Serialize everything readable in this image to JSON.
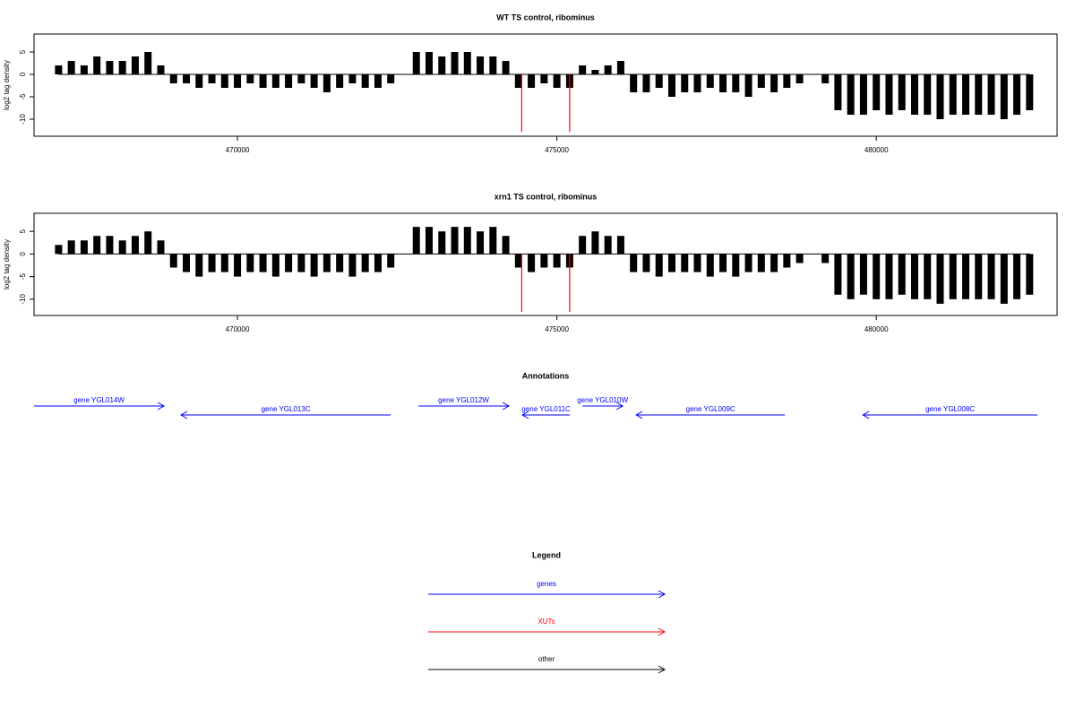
{
  "chart_data": [
    {
      "type": "spike",
      "title": "WT TS control, ribominus",
      "ylabel": "log2 tag density",
      "color": "#000000",
      "x": [
        467200,
        467400,
        467600,
        467800,
        468000,
        468200,
        468400,
        468600,
        468800,
        469000,
        469200,
        469400,
        469600,
        469800,
        470000,
        470200,
        470400,
        470600,
        470800,
        471000,
        471200,
        471400,
        471600,
        471800,
        472000,
        472200,
        472400,
        472600,
        472800,
        473000,
        473200,
        473400,
        473600,
        473800,
        474000,
        474200,
        474400,
        474600,
        474800,
        475000,
        475200,
        475400,
        475600,
        475800,
        476000,
        476200,
        476400,
        476600,
        476800,
        477000,
        477200,
        477400,
        477600,
        477800,
        478000,
        478200,
        478400,
        478600,
        478800,
        479000,
        479200,
        479400,
        479600,
        479800,
        480000,
        480200,
        480400,
        480600,
        480800,
        481000,
        481200,
        481400,
        481600,
        481800,
        482000,
        482200,
        482400
      ],
      "values": [
        2,
        3,
        2,
        4,
        3,
        3,
        4,
        5,
        2,
        -2,
        -2,
        -3,
        -2,
        -3,
        -3,
        -2,
        -3,
        -3,
        -3,
        -2,
        -3,
        -4,
        -3,
        -2,
        -3,
        -3,
        -2,
        0,
        5,
        5,
        4,
        5,
        5,
        4,
        4,
        3,
        -3,
        -3,
        -2,
        -3,
        -3,
        2,
        1,
        2,
        3,
        -4,
        -4,
        -3,
        -5,
        -4,
        -4,
        -3,
        -4,
        -4,
        -5,
        -3,
        -4,
        -3,
        -2,
        0,
        -2,
        -8,
        -9,
        -9,
        -8,
        -9,
        -8,
        -9,
        -9,
        -10,
        -9,
        -9,
        -9,
        -9,
        -10,
        -9,
        -8
      ],
      "highlight": {
        "color": "#ff0000",
        "x": [
          474450,
          475200
        ],
        "values": [
          -12.8,
          -12.8
        ]
      },
      "xlim": [
        466816,
        482830
      ],
      "ylim": [
        -13.8,
        9
      ],
      "xticks": [
        470000,
        475000,
        480000
      ],
      "yticks": [
        -10,
        -5,
        0,
        5
      ]
    },
    {
      "type": "spike",
      "title": "xrn1 TS control, ribominus",
      "ylabel": "log2 tag density",
      "color": "#000000",
      "x": [
        467200,
        467400,
        467600,
        467800,
        468000,
        468200,
        468400,
        468600,
        468800,
        469000,
        469200,
        469400,
        469600,
        469800,
        470000,
        470200,
        470400,
        470600,
        470800,
        471000,
        471200,
        471400,
        471600,
        471800,
        472000,
        472200,
        472400,
        472600,
        472800,
        473000,
        473200,
        473400,
        473600,
        473800,
        474000,
        474200,
        474400,
        474600,
        474800,
        475000,
        475200,
        475400,
        475600,
        475800,
        476000,
        476200,
        476400,
        476600,
        476800,
        477000,
        477200,
        477400,
        477600,
        477800,
        478000,
        478200,
        478400,
        478600,
        478800,
        479000,
        479200,
        479400,
        479600,
        479800,
        480000,
        480200,
        480400,
        480600,
        480800,
        481000,
        481200,
        481400,
        481600,
        481800,
        482000,
        482200,
        482400
      ],
      "values": [
        2,
        3,
        3,
        4,
        4,
        3,
        4,
        5,
        3,
        -3,
        -4,
        -5,
        -4,
        -4,
        -5,
        -4,
        -4,
        -5,
        -4,
        -4,
        -5,
        -4,
        -4,
        -5,
        -4,
        -4,
        -3,
        0,
        6,
        6,
        5,
        6,
        6,
        5,
        6,
        4,
        -3,
        -4,
        -3,
        -3,
        -3,
        4,
        5,
        4,
        4,
        -4,
        -4,
        -5,
        -4,
        -4,
        -4,
        -5,
        -4,
        -5,
        -4,
        -4,
        -4,
        -3,
        -2,
        0,
        -2,
        -9,
        -10,
        -9,
        -10,
        -10,
        -9,
        -10,
        -10,
        -11,
        -10,
        -10,
        -10,
        -10,
        -11,
        -10,
        -9
      ],
      "highlight": {
        "color": "#ff0000",
        "x": [
          474450,
          475200
        ],
        "values": [
          -12.8,
          -12.8
        ]
      },
      "xlim": [
        466816,
        482830
      ],
      "ylim": [
        -13.6,
        9
      ],
      "xticks": [
        470000,
        475000,
        480000
      ],
      "yticks": [
        -10,
        -5,
        0,
        5
      ]
    },
    {
      "type": "annotation",
      "title": "Annotations",
      "color": "#0000ff",
      "xlim": [
        466816,
        482830
      ],
      "genes": [
        {
          "label": "gene YGL014W",
          "start": 466816,
          "end": 468850,
          "strand": "+"
        },
        {
          "label": "gene YGL013C",
          "start": 469116,
          "end": 472400,
          "strand": "-"
        },
        {
          "label": "gene YGL012W",
          "start": 472833,
          "end": 474249,
          "strand": "+"
        },
        {
          "label": "gene YGL011C",
          "start": 474460,
          "end": 475203,
          "strand": "-"
        },
        {
          "label": "gene YGL010W",
          "start": 475400,
          "end": 476030,
          "strand": "+"
        },
        {
          "label": "gene YGL009C",
          "start": 476241,
          "end": 478570,
          "strand": "-"
        },
        {
          "label": "gene YGL008C",
          "start": 479790,
          "end": 482524,
          "strand": "-"
        }
      ]
    },
    {
      "type": "legend",
      "title": "Legend",
      "entries": [
        {
          "name": "genes",
          "color": "#0000ff"
        },
        {
          "name": "XUTs",
          "color": "#ff0000"
        },
        {
          "name": "other",
          "color": "#000000"
        }
      ]
    }
  ]
}
